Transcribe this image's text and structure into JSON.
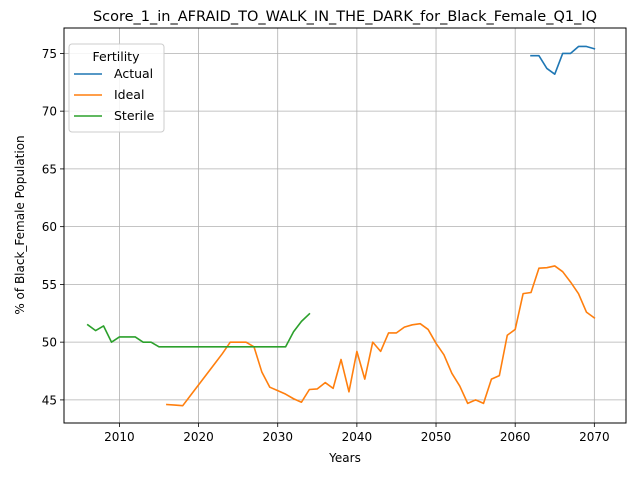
{
  "chart_data": {
    "type": "line",
    "title": "Score_1_in_AFRAID_TO_WALK_IN_THE_DARK_for_Black_Female_Q1_IQ",
    "xlabel": "Years",
    "ylabel": "% of Black_Female Population",
    "xlim": [
      2003,
      2074
    ],
    "ylim": [
      43.0,
      77.2
    ],
    "xticks": [
      2010,
      2020,
      2030,
      2040,
      2050,
      2060,
      2070
    ],
    "yticks": [
      45,
      50,
      55,
      60,
      65,
      70,
      75
    ],
    "grid": true,
    "legend": {
      "title": "Fertility",
      "position": "upper-left"
    },
    "series": [
      {
        "name": "Actual",
        "color": "#1f77b4",
        "x": [
          2062,
          2063,
          2064,
          2065,
          2066,
          2067,
          2068,
          2069,
          2070
        ],
        "y": [
          74.8,
          74.8,
          73.7,
          73.2,
          75.0,
          75.0,
          75.6,
          75.6,
          75.4
        ]
      },
      {
        "name": "Ideal",
        "color": "#ff7f0e",
        "x": [
          2016,
          2017,
          2018,
          2019,
          2020,
          2021,
          2022,
          2023,
          2024,
          2025,
          2026,
          2027,
          2028,
          2029,
          2030,
          2031,
          2032,
          2033,
          2034,
          2035,
          2036,
          2037,
          2038,
          2039,
          2040,
          2041,
          2042,
          2043,
          2044,
          2045,
          2046,
          2047,
          2048,
          2049,
          2050,
          2051,
          2052,
          2053,
          2054,
          2055,
          2056,
          2057,
          2058,
          2059,
          2060,
          2061,
          2062,
          2063,
          2064,
          2065,
          2066,
          2067,
          2068,
          2069,
          2070
        ],
        "y": [
          44.6,
          44.55,
          44.5,
          45.4,
          46.3,
          47.2,
          48.1,
          49.0,
          50.0,
          50.0,
          50.0,
          49.6,
          47.4,
          46.1,
          45.8,
          45.5,
          45.1,
          44.8,
          45.9,
          45.95,
          46.5,
          46.0,
          48.5,
          45.7,
          49.2,
          46.8,
          50.0,
          49.2,
          50.8,
          50.8,
          51.3,
          51.5,
          51.6,
          51.1,
          49.9,
          48.9,
          47.3,
          46.2,
          44.7,
          45.0,
          44.7,
          46.8,
          47.1,
          50.6,
          51.1,
          54.2,
          54.3,
          56.4,
          56.45,
          56.6,
          56.1,
          55.2,
          54.2,
          52.6,
          52.1
        ]
      },
      {
        "name": "Sterile",
        "color": "#2ca02c",
        "x": [
          2006,
          2007,
          2008,
          2009,
          2010,
          2011,
          2012,
          2013,
          2014,
          2015,
          2016,
          2017,
          2018,
          2019,
          2020,
          2021,
          2022,
          2023,
          2024,
          2025,
          2026,
          2027,
          2028,
          2029,
          2030,
          2031,
          2032,
          2033,
          2034
        ],
        "y": [
          51.5,
          51.0,
          51.4,
          50.0,
          50.45,
          50.45,
          50.45,
          50.0,
          50.0,
          49.6,
          49.6,
          49.6,
          49.6,
          49.6,
          49.6,
          49.6,
          49.6,
          49.6,
          49.6,
          49.6,
          49.6,
          49.6,
          49.6,
          49.6,
          49.6,
          49.6,
          50.9,
          51.8,
          52.45
        ]
      }
    ]
  }
}
